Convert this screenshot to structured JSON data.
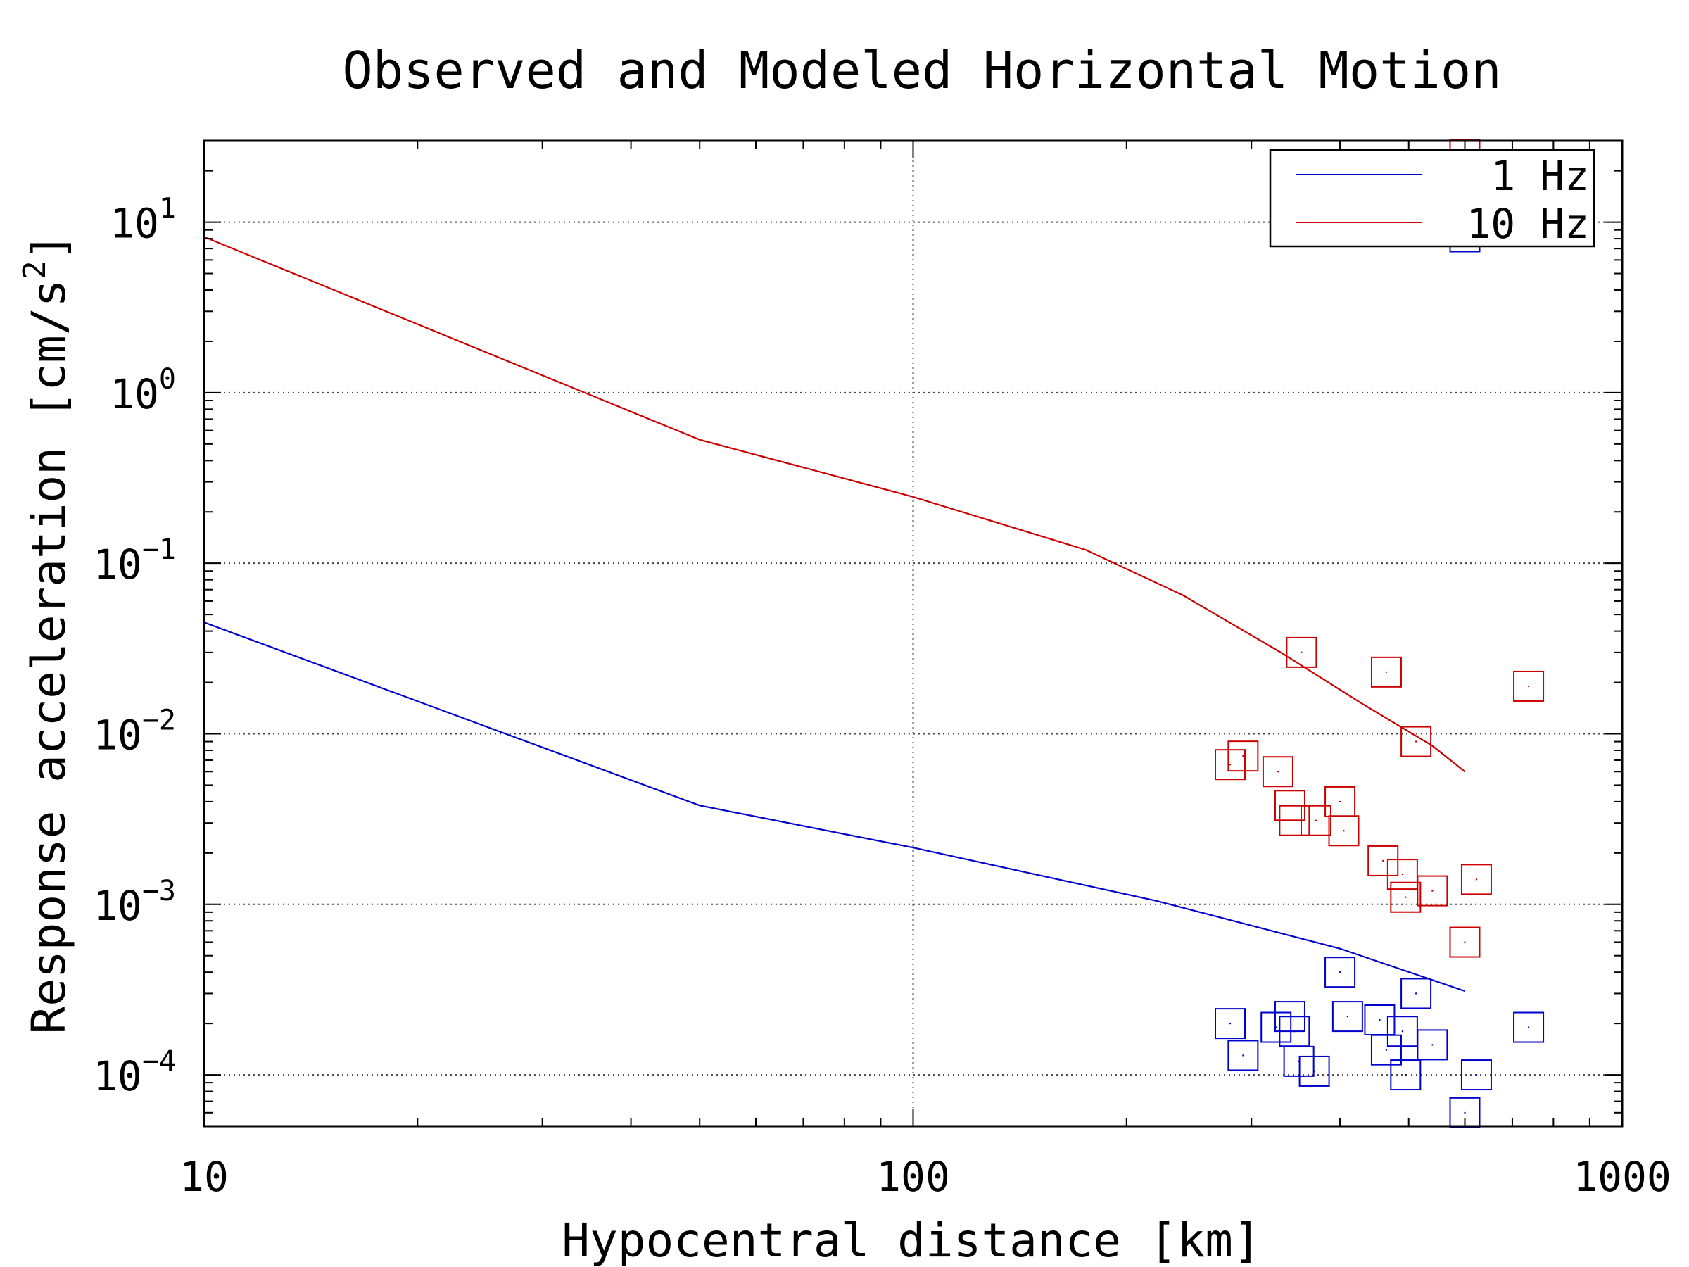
{
  "chart_data": {
    "type": "scatter",
    "title": "Observed and Modeled Horizontal Motion",
    "xlabel": "Hypocentral distance [km]",
    "ylabel": "Response acceleration [cm/s",
    "ylabel_sup": "2",
    "ylabel_end": "]",
    "x_scale": "log",
    "y_scale": "log",
    "xlim": [
      10,
      1000
    ],
    "ylim": [
      5e-05,
      30
    ],
    "x_ticks": [
      {
        "value": 10,
        "label": "10"
      },
      {
        "value": 100,
        "label": "100"
      },
      {
        "value": 1000,
        "label": "1000"
      }
    ],
    "y_ticks": [
      {
        "value": 10,
        "base": "10",
        "exp": "1"
      },
      {
        "value": 1,
        "base": "10",
        "exp": "0"
      },
      {
        "value": 0.1,
        "base": "10",
        "exp": "−1"
      },
      {
        "value": 0.01,
        "base": "10",
        "exp": "−2"
      },
      {
        "value": 0.001,
        "base": "10",
        "exp": "−3"
      },
      {
        "value": 0.0001,
        "base": "10",
        "exp": "−4"
      }
    ],
    "grid": true,
    "legend_position": "top-right",
    "series": [
      {
        "name": "1 Hz",
        "color": "#0000cc",
        "model_line": {
          "x": [
            10,
            50,
            100,
            220,
            400,
            600
          ],
          "y": [
            0.045,
            0.0038,
            0.00215,
            0.00105,
            0.00055,
            0.00031
          ]
        },
        "observed": {
          "x": [
            280,
            292,
            325,
            340,
            345,
            350,
            368,
            400,
            410,
            455,
            465,
            490,
            495,
            512,
            540,
            600,
            623,
            738
          ],
          "y": [
            0.0002,
            0.00013,
            0.00019,
            0.00022,
            0.00018,
            0.00012,
            0.000105,
            0.0004,
            0.00022,
            0.00021,
            0.00014,
            0.00018,
            0.0001,
            0.0003,
            0.00015,
            6e-05,
            0.0001,
            0.00019
          ]
        }
      },
      {
        "name": "10 Hz",
        "color": "#cc0000",
        "model_line": {
          "x": [
            10,
            50,
            100,
            175,
            240,
            330,
            430,
            540,
            600
          ],
          "y": [
            8.2,
            0.53,
            0.245,
            0.12,
            0.065,
            0.03,
            0.015,
            0.0085,
            0.006
          ]
        },
        "observed": {
          "x": [
            280,
            292,
            327,
            340,
            345,
            353,
            370,
            400,
            405,
            460,
            465,
            490,
            495,
            512,
            540,
            600,
            623,
            738
          ],
          "y": [
            0.0066,
            0.0074,
            0.006,
            0.0038,
            0.0031,
            0.03,
            0.0031,
            0.004,
            0.0027,
            0.0018,
            0.023,
            0.0015,
            0.0011,
            0.009,
            0.0012,
            0.0006,
            0.0014,
            0.019
          ]
        },
        "extra_points": {
          "x": [
            600,
            600
          ],
          "y": [
            25,
            8.2
          ]
        }
      }
    ]
  }
}
